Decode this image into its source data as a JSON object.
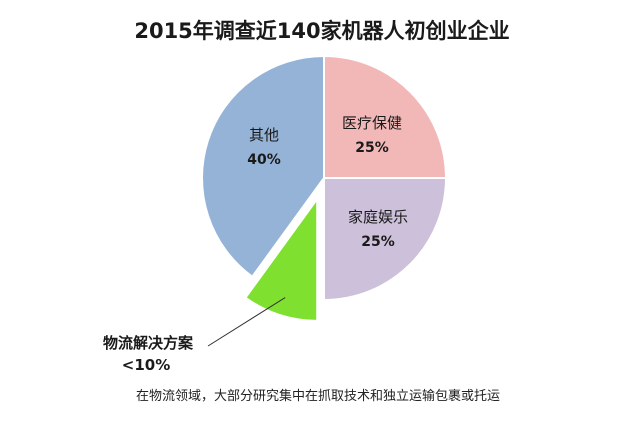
{
  "chart_data": {
    "type": "pie",
    "title": "2015年调查近140家机器人初创业企业",
    "slices": [
      {
        "label": "医疗保健",
        "value_label": "25%",
        "value": 25,
        "color": "#f2b8b8"
      },
      {
        "label": "家庭娱乐",
        "value_label": "25%",
        "value": 25,
        "color": "#ccc0da"
      },
      {
        "label": "物流解决方案",
        "value_label": "<10%",
        "value": 10,
        "color": "#80e030",
        "exploded": true
      },
      {
        "label": "其他",
        "value_label": "40%",
        "value": 40,
        "color": "#95b3d7"
      }
    ],
    "legend": "none",
    "note": "在物流领域，大部分研究集中在抓取技术和独立运输包裹或托运"
  }
}
